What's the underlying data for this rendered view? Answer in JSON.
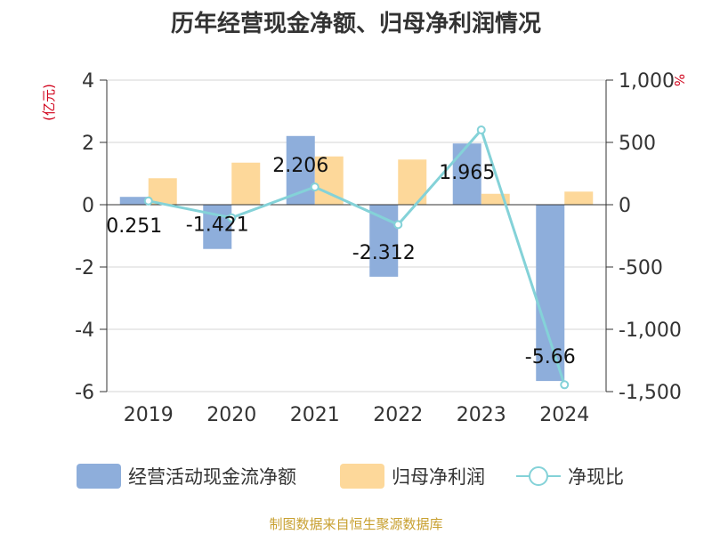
{
  "title": "历年经营现金净额、归母净利润情况",
  "source": "制图数据来自恒生聚源数据库",
  "chart_data": {
    "type": "bar",
    "title": "历年经营现金净额、归母净利润情况",
    "categories": [
      "2019",
      "2020",
      "2021",
      "2022",
      "2023",
      "2024"
    ],
    "ylabel_left": "(亿元)",
    "ylabel_right": "%",
    "ylim_left": [
      -6,
      4
    ],
    "ylim_right": [
      -1500,
      1000
    ],
    "yticks_left": [
      "4",
      "2",
      "0",
      "-2",
      "-4",
      "-6"
    ],
    "yticks_right": [
      "1,000",
      "500",
      "0",
      "-500",
      "-1,000",
      "-1,500"
    ],
    "series": [
      {
        "name": "经营活动现金流净额",
        "type": "bar",
        "axis": "left",
        "color": "#8eaedb",
        "values": [
          0.251,
          -1.421,
          2.206,
          -2.312,
          1.965,
          -5.66
        ],
        "labels": [
          "0.251",
          "-1.421",
          "2.206",
          "-2.312",
          "1.965",
          "-5.66"
        ]
      },
      {
        "name": "归母净利润",
        "type": "bar",
        "axis": "left",
        "color": "#fdd89a",
        "values": [
          0.85,
          1.35,
          1.55,
          1.45,
          0.35,
          0.42
        ]
      },
      {
        "name": "净现比",
        "type": "line",
        "axis": "right",
        "color": "#84d2d8",
        "values": [
          30,
          -105,
          142,
          -160,
          600,
          -1445
        ]
      }
    ],
    "legend": "bottom",
    "grid": true
  }
}
